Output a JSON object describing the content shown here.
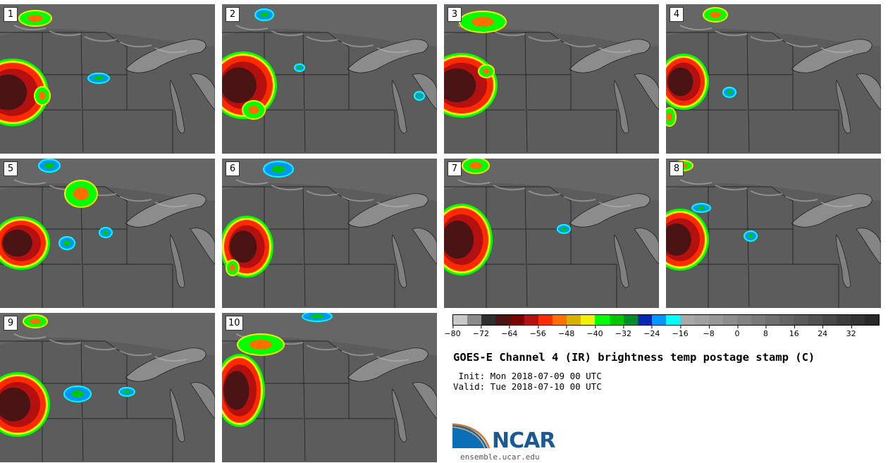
{
  "title": "GOES-E Channel 4 (IR) brightness temp postage stamp (C)",
  "init": " Init: Mon 2018-07-09 00 UTC",
  "valid": "Valid: Tue 2018-07-10 00 UTC",
  "logo": {
    "text": "NCAR",
    "site": "ensemble.ucar.edu"
  },
  "colorbar": {
    "unit": "C",
    "range": [
      -80,
      40
    ],
    "ticks": [
      "−80",
      "−72",
      "−64",
      "−56",
      "−48",
      "−40",
      "−32",
      "−24",
      "−16",
      "−8",
      "0",
      "8",
      "16",
      "24",
      "32"
    ],
    "tick_values": [
      -80,
      -72,
      -64,
      -56,
      -48,
      -40,
      -32,
      -24,
      -16,
      -8,
      0,
      8,
      16,
      24,
      32
    ],
    "colors": [
      "#c8c8c8",
      "#8a8a8a",
      "#2e2e2e",
      "#4a1414",
      "#7a0000",
      "#b41010",
      "#ff2a00",
      "#ff7000",
      "#d8b000",
      "#f0f000",
      "#00ff00",
      "#00c800",
      "#008c28",
      "#0028b4",
      "#0096ff",
      "#00ffff",
      "#a8a8a8",
      "#a0a0a0",
      "#969696",
      "#8c8c8c",
      "#828282",
      "#787878",
      "#6e6e6e",
      "#646464",
      "#5a5a5a",
      "#505050",
      "#464646",
      "#3c3c3c",
      "#323232",
      "#282828"
    ]
  },
  "panels": [
    {
      "label": "1"
    },
    {
      "label": "2"
    },
    {
      "label": "3"
    },
    {
      "label": "4"
    },
    {
      "label": "5"
    },
    {
      "label": "6"
    },
    {
      "label": "7"
    },
    {
      "label": "8"
    },
    {
      "label": "9"
    },
    {
      "label": "10"
    }
  ]
}
